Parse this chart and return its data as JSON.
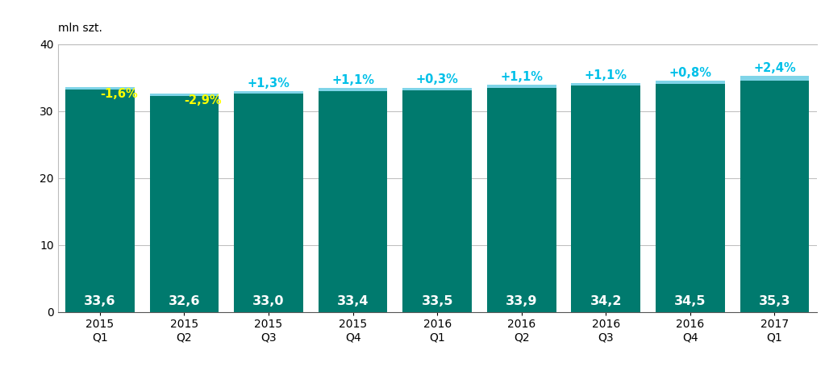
{
  "categories": [
    "2015\nQ1",
    "2015\nQ2",
    "2015\nQ3",
    "2015\nQ4",
    "2016\nQ1",
    "2016\nQ2",
    "2016\nQ3",
    "2016\nQ4",
    "2017\nQ1"
  ],
  "total_values": [
    33.6,
    32.6,
    33.0,
    33.4,
    33.5,
    33.9,
    34.2,
    34.5,
    35.3
  ],
  "micro_values": [
    33.2,
    32.2,
    32.55,
    32.95,
    33.1,
    33.5,
    33.8,
    34.1,
    34.55
  ],
  "mag_values": [
    0.4,
    0.4,
    0.45,
    0.45,
    0.4,
    0.4,
    0.4,
    0.4,
    0.75
  ],
  "pct_labels": [
    "-1,6%",
    "-2,9%",
    "+1,3%",
    "+1,1%",
    "+0,3%",
    "+1,1%",
    "+1,1%",
    "+0,8%",
    "+2,4%"
  ],
  "pct_colors": [
    "#ffff00",
    "#ffff00",
    "#00c0e8",
    "#00c0e8",
    "#00c0e8",
    "#00c0e8",
    "#00c0e8",
    "#00c0e8",
    "#00c0e8"
  ],
  "teal_color": "#007a6e",
  "lightblue_color": "#7fd4e8",
  "bar_value_color": "#ffffff",
  "ylabel": "mln szt.",
  "ylim": [
    0,
    40
  ],
  "yticks": [
    0,
    10,
    20,
    30,
    40
  ],
  "background_color": "#ffffff",
  "grid_color": "#bbbbbb",
  "bar_value_fontsize": 11.5,
  "pct_fontsize": 10.5
}
